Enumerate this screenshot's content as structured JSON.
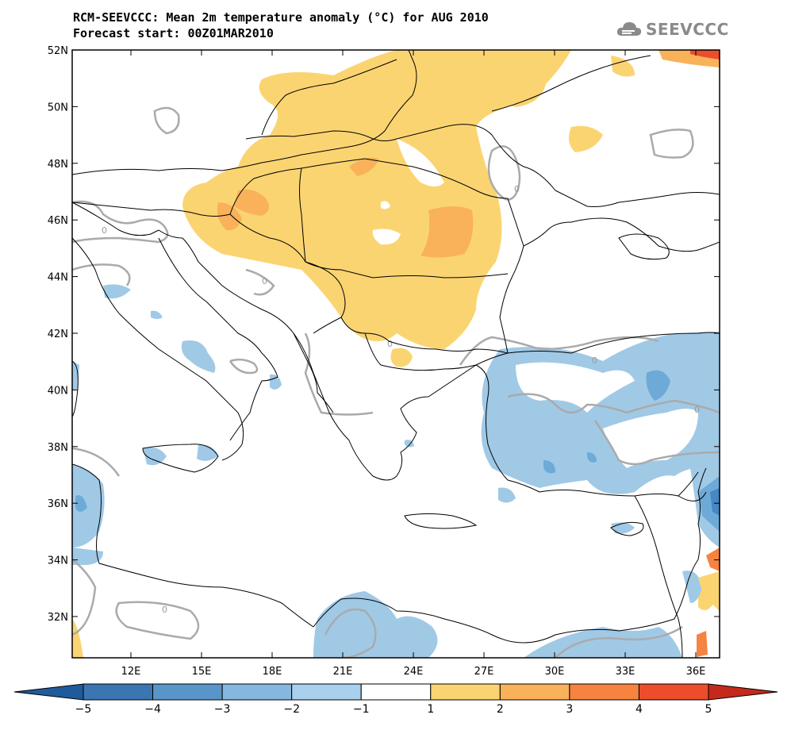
{
  "header": {
    "title_line1": "RCM-SEEVCCC: Mean 2m temperature anomaly (°C) for AUG 2010",
    "title_line2": "Forecast start: 00Z01MAR2010",
    "logo_text": "SEEVCCC"
  },
  "map": {
    "lat_ticks": [
      "52N",
      "50N",
      "48N",
      "46N",
      "44N",
      "42N",
      "40N",
      "38N",
      "36N",
      "34N",
      "32N"
    ],
    "lon_ticks": [
      "12E",
      "15E",
      "18E",
      "21E",
      "24E",
      "27E",
      "30E",
      "33E",
      "36E"
    ],
    "contour_label": "0",
    "colors": {
      "pos_1_2": "#fbd472",
      "pos_2_3": "#f9b25a",
      "pos_3_4": "#f6833f",
      "pos_4_5": "#ec4d2b",
      "neg_1_2": "#a0c9e6",
      "neg_2_3": "#6eaad8",
      "neg_3_4": "#4787c2",
      "neg_4_5": "#1f5b9b",
      "contour": "#aaaaaa",
      "border": "#000000"
    }
  },
  "colorbar": {
    "labels": [
      "−5",
      "−4",
      "−3",
      "−2",
      "−1",
      "1",
      "2",
      "3",
      "4",
      "5"
    ],
    "colors": [
      "#1f5b9b",
      "#3b76b3",
      "#5a95c9",
      "#86b7df",
      "#a9d0ec",
      "#ffffff",
      "#fbd472",
      "#f9b25a",
      "#f6833f",
      "#ec4d2b"
    ]
  }
}
